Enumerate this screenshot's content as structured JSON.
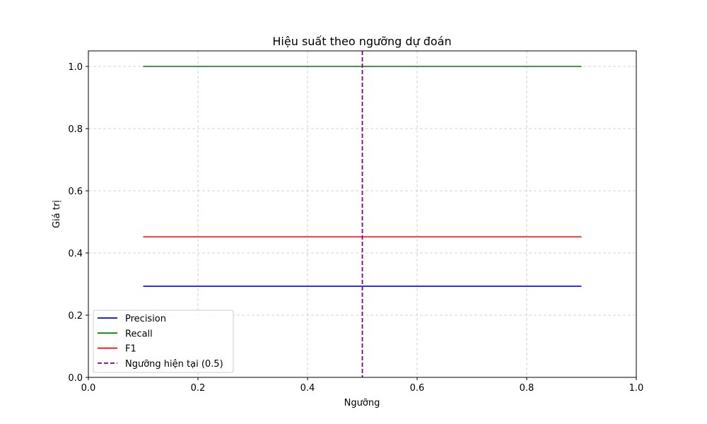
{
  "chart_data": {
    "type": "line",
    "title": "Hiệu suất theo ngưỡng dự đoán",
    "xlabel": "Ngưỡng",
    "ylabel": "Giá trị",
    "xlim": [
      0.0,
      1.0
    ],
    "ylim": [
      0.0,
      1.05
    ],
    "xticks": [
      "0.0",
      "0.2",
      "0.4",
      "0.6",
      "0.8",
      "1.0"
    ],
    "yticks": [
      "0.0",
      "0.2",
      "0.4",
      "0.6",
      "0.8",
      "1.0"
    ],
    "grid": true,
    "legend_position": "lower-left",
    "series": [
      {
        "name": "Precision",
        "color": "#0000ff",
        "style": "solid",
        "x": [
          0.1,
          0.9
        ],
        "y": [
          0.293,
          0.293
        ]
      },
      {
        "name": "Recall",
        "color": "#008000",
        "style": "solid",
        "x": [
          0.1,
          0.9
        ],
        "y": [
          1.0,
          1.0
        ]
      },
      {
        "name": "F1",
        "color": "#ff0000",
        "style": "solid",
        "x": [
          0.1,
          0.9
        ],
        "y": [
          0.452,
          0.452
        ]
      }
    ],
    "vline": {
      "name": "Ngưỡng hiện tại (0.5)",
      "x": 0.5,
      "color": "#800080",
      "style": "dashed"
    }
  }
}
